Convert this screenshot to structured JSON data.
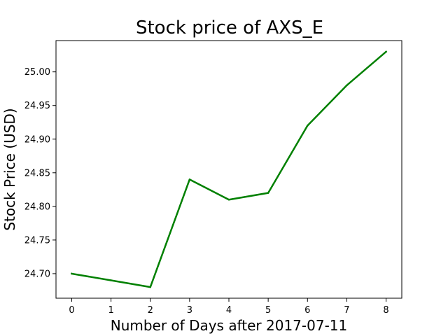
{
  "chart_data": {
    "type": "line",
    "title": "Stock price of AXS_E",
    "xlabel": "Number of Days after 2017-07-11",
    "ylabel": "Stock Price (USD)",
    "x": [
      0,
      1,
      2,
      3,
      4,
      5,
      6,
      7,
      8
    ],
    "series": [
      {
        "values": [
          24.7,
          24.69,
          24.68,
          24.84,
          24.81,
          24.82,
          24.92,
          24.98,
          25.03
        ],
        "color": "#008000"
      }
    ],
    "xlim": [
      -0.4,
      8.4
    ],
    "ylim": [
      24.6635,
      25.0465
    ],
    "x_ticks": [
      "0",
      "1",
      "2",
      "3",
      "4",
      "5",
      "6",
      "7",
      "8"
    ],
    "y_ticks": [
      "24.70",
      "24.75",
      "24.80",
      "24.85",
      "24.90",
      "24.95",
      "25.00"
    ],
    "grid": false,
    "legend": false
  }
}
